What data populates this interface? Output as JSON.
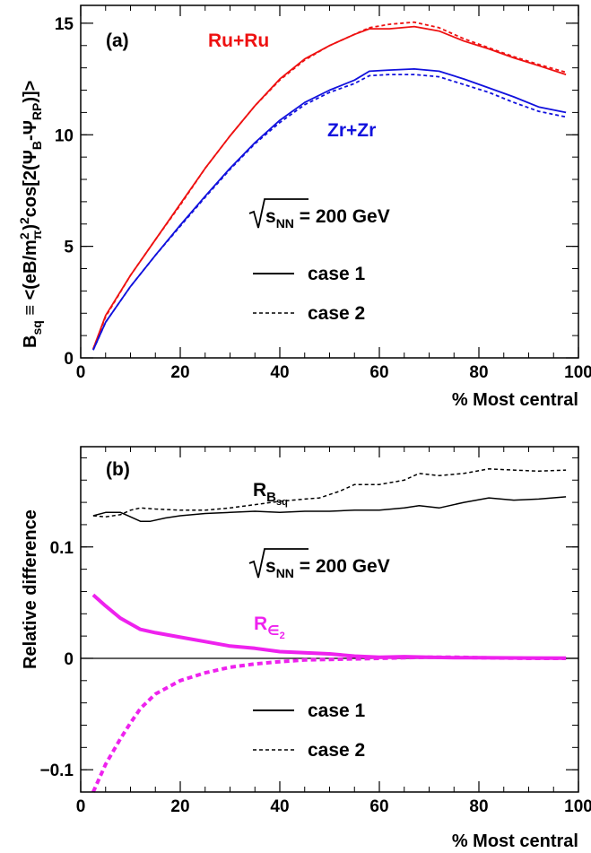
{
  "chart_data": [
    {
      "type": "line",
      "panel_label": "(a)",
      "ylabel": "B_sq ≡ <(eB/m_π²)²cos[2(Ψ_B−Ψ_RP)]>",
      "ylabel_parts": {
        "base": "B",
        "base_sub": "sq",
        "rest1": " ≡ <(eB/m",
        "sup1": "2",
        "sub1": "π",
        "rest2": ")",
        "sup2": "2",
        "rest3": "cos[2(Ψ",
        "sub2": "B",
        "rest4": "-Ψ",
        "sub3": "RP",
        "rest5": ")]>"
      },
      "xlabel": "% Most central",
      "xlim": [
        0,
        100
      ],
      "ylim": [
        0,
        15.8
      ],
      "xticks": [
        0,
        20,
        40,
        60,
        80,
        100
      ],
      "yticks": [
        0,
        5,
        10,
        15
      ],
      "annotations": {
        "ru_label": "Ru+Ru",
        "zr_label": "Zr+Zr",
        "energy": {
          "sqrt": "s",
          "sub": "NN",
          "rest": " = 200 GeV"
        }
      },
      "legend": {
        "case1": "case 1",
        "case2": "case 2"
      },
      "colors": {
        "ru": "#ee1111",
        "zr": "#1111dd"
      },
      "series": [
        {
          "name": "Ru+Ru",
          "style": "case 1",
          "x": [
            2.5,
            5,
            10,
            15,
            20,
            25,
            30,
            35,
            40,
            45,
            50,
            55,
            58,
            62,
            67,
            72,
            77,
            82,
            87,
            92,
            97.5
          ],
          "y": [
            0.4,
            1.9,
            3.7,
            5.3,
            6.9,
            8.5,
            9.95,
            11.3,
            12.5,
            13.4,
            14.0,
            14.5,
            14.75,
            14.75,
            14.85,
            14.65,
            14.2,
            13.85,
            13.45,
            13.1,
            12.7
          ]
        },
        {
          "name": "Ru+Ru",
          "style": "case 2",
          "x": [
            2.5,
            5,
            10,
            15,
            20,
            25,
            30,
            35,
            40,
            45,
            50,
            55,
            58,
            62,
            67,
            72,
            77,
            82,
            87,
            92,
            97.5
          ],
          "y": [
            0.4,
            1.85,
            3.7,
            5.3,
            6.85,
            8.5,
            9.95,
            11.3,
            12.45,
            13.35,
            14.0,
            14.5,
            14.8,
            14.95,
            15.05,
            14.8,
            14.3,
            13.9,
            13.5,
            13.15,
            12.8
          ]
        },
        {
          "name": "Zr+Zr",
          "style": "case 1",
          "x": [
            2.5,
            5,
            10,
            15,
            20,
            25,
            30,
            35,
            40,
            45,
            50,
            55,
            58,
            62,
            67,
            72,
            77,
            82,
            87,
            92,
            97.5
          ],
          "y": [
            0.35,
            1.6,
            3.2,
            4.6,
            5.95,
            7.25,
            8.5,
            9.65,
            10.65,
            11.45,
            12.0,
            12.45,
            12.85,
            12.9,
            12.95,
            12.85,
            12.5,
            12.1,
            11.7,
            11.25,
            11.0
          ]
        },
        {
          "name": "Zr+Zr",
          "style": "case 2",
          "x": [
            2.5,
            5,
            10,
            15,
            20,
            25,
            30,
            35,
            40,
            45,
            50,
            55,
            58,
            62,
            67,
            72,
            77,
            82,
            87,
            92,
            97.5
          ],
          "y": [
            0.35,
            1.6,
            3.2,
            4.6,
            5.9,
            7.2,
            8.45,
            9.6,
            10.55,
            11.35,
            11.9,
            12.3,
            12.65,
            12.7,
            12.7,
            12.6,
            12.25,
            11.9,
            11.45,
            11.05,
            10.8
          ]
        }
      ]
    },
    {
      "type": "line",
      "panel_label": "(b)",
      "ylabel": "Relative difference",
      "xlabel": "% Most central",
      "xlim": [
        0,
        100
      ],
      "ylim": [
        -0.12,
        0.19
      ],
      "xticks": [
        0,
        20,
        40,
        60,
        80,
        100
      ],
      "yticks": [
        -0.1,
        0,
        0.1
      ],
      "ytick_labels": [
        "−0.1",
        "0",
        "0.1"
      ],
      "annotations": {
        "rb_label": {
          "base": "R",
          "sub": "B",
          "subsub": "sq"
        },
        "re_label": {
          "base": "R",
          "sub": "∈",
          "subsub": "2"
        },
        "energy": {
          "sqrt": "s",
          "sub": "NN",
          "rest": " = 200 GeV"
        }
      },
      "legend": {
        "case1": "case 1",
        "case2": "case 2"
      },
      "colors": {
        "rb": "#000000",
        "re": "#ee22ee"
      },
      "series": [
        {
          "name": "R_Bsq",
          "style": "case 1",
          "x": [
            2.5,
            5,
            8,
            10,
            12,
            14,
            17,
            20,
            25,
            30,
            35,
            40,
            45,
            50,
            55,
            60,
            65,
            68,
            72,
            77,
            82,
            87,
            92,
            97.5
          ],
          "y": [
            0.128,
            0.131,
            0.131,
            0.127,
            0.123,
            0.123,
            0.126,
            0.128,
            0.13,
            0.131,
            0.132,
            0.131,
            0.132,
            0.132,
            0.133,
            0.133,
            0.135,
            0.137,
            0.135,
            0.14,
            0.144,
            0.142,
            0.143,
            0.145
          ]
        },
        {
          "name": "R_Bsq",
          "style": "case 2",
          "x": [
            2.5,
            5,
            8,
            10,
            12,
            15,
            20,
            25,
            30,
            35,
            40,
            45,
            48,
            52,
            55,
            60,
            65,
            68,
            72,
            77,
            82,
            87,
            92,
            97.5
          ],
          "y": [
            0.128,
            0.127,
            0.129,
            0.133,
            0.135,
            0.134,
            0.133,
            0.133,
            0.135,
            0.138,
            0.141,
            0.143,
            0.144,
            0.15,
            0.156,
            0.156,
            0.16,
            0.166,
            0.164,
            0.166,
            0.17,
            0.169,
            0.168,
            0.169
          ]
        },
        {
          "name": "R_ε2",
          "style": "case 1",
          "x": [
            2.5,
            5,
            8,
            12,
            15,
            20,
            25,
            30,
            35,
            40,
            45,
            50,
            55,
            60,
            65,
            70,
            75,
            80,
            90,
            97.5
          ],
          "y": [
            0.057,
            0.047,
            0.036,
            0.026,
            0.023,
            0.019,
            0.015,
            0.011,
            0.009,
            0.006,
            0.005,
            0.004,
            0.002,
            0.001,
            0.0015,
            0.001,
            0.0005,
            0.0005,
            0.0003,
            0.0002
          ]
        },
        {
          "name": "R_ε2",
          "style": "case 2",
          "x": [
            2.5,
            5,
            8,
            10,
            12,
            15,
            20,
            25,
            30,
            35,
            40,
            45,
            50,
            55,
            60,
            65,
            70,
            75,
            80,
            90,
            97.5
          ],
          "y": [
            -0.12,
            -0.095,
            -0.072,
            -0.058,
            -0.045,
            -0.032,
            -0.02,
            -0.013,
            -0.008,
            -0.005,
            -0.003,
            -0.0015,
            -0.001,
            -0.0005,
            0.0,
            0.0005,
            0.001,
            0.001,
            0.0005,
            0.0,
            0.0
          ]
        }
      ]
    }
  ]
}
